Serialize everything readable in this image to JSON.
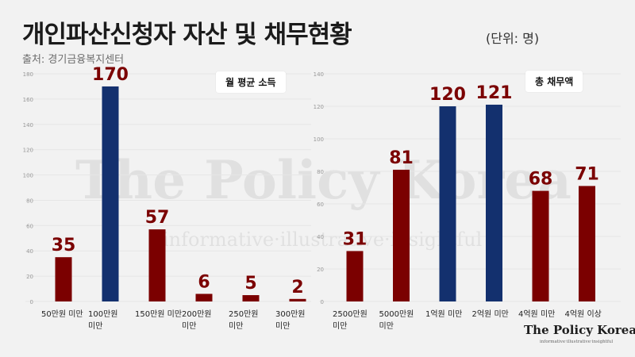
{
  "title": "개인파산신청자 자산 및 채무현황",
  "unit": "(단위: 명)",
  "source": "출처: 경기금융복지센터",
  "watermark": "The Policy Korea",
  "watermark_sub": "informative·illustrative·insightful",
  "logo": "The Policy Korea",
  "logo_sub": "informative·illustrative·insightful",
  "colors": {
    "red": "#7b0000",
    "blue": "#13306e",
    "grid": "#e6e6e6",
    "label": "#7b0000"
  },
  "chart_data": [
    {
      "type": "bar",
      "title": "월 평균 소득",
      "ylim": [
        0,
        180
      ],
      "yticks": [
        0,
        20,
        40,
        60,
        80,
        100,
        120,
        140,
        160,
        180
      ],
      "grid": true,
      "legend_position": "top-right",
      "categories": [
        [
          "50만원 미만"
        ],
        [
          "100만원",
          "미만"
        ],
        [
          "150만원 미만"
        ],
        [
          "200만원",
          "미만"
        ],
        [
          "250만원",
          "미만"
        ],
        [
          "300만원",
          "미만"
        ]
      ],
      "values": [
        35,
        170,
        57,
        6,
        5,
        2
      ],
      "colors": [
        "red",
        "blue",
        "red",
        "red",
        "red",
        "red"
      ]
    },
    {
      "type": "bar",
      "title": "총 채무액",
      "ylim": [
        0,
        140
      ],
      "yticks": [
        0,
        20,
        40,
        60,
        80,
        100,
        120,
        140
      ],
      "grid": true,
      "legend_position": "top-right",
      "categories": [
        [
          "2500만원",
          "미만"
        ],
        [
          "5000만원",
          "미만"
        ],
        [
          "1억원 미만"
        ],
        [
          "2억원 미만"
        ],
        [
          "4억원 미만"
        ],
        [
          "4억원 이상"
        ]
      ],
      "values": [
        31,
        81,
        120,
        121,
        68,
        71
      ],
      "colors": [
        "red",
        "red",
        "blue",
        "blue",
        "red",
        "red"
      ]
    }
  ]
}
